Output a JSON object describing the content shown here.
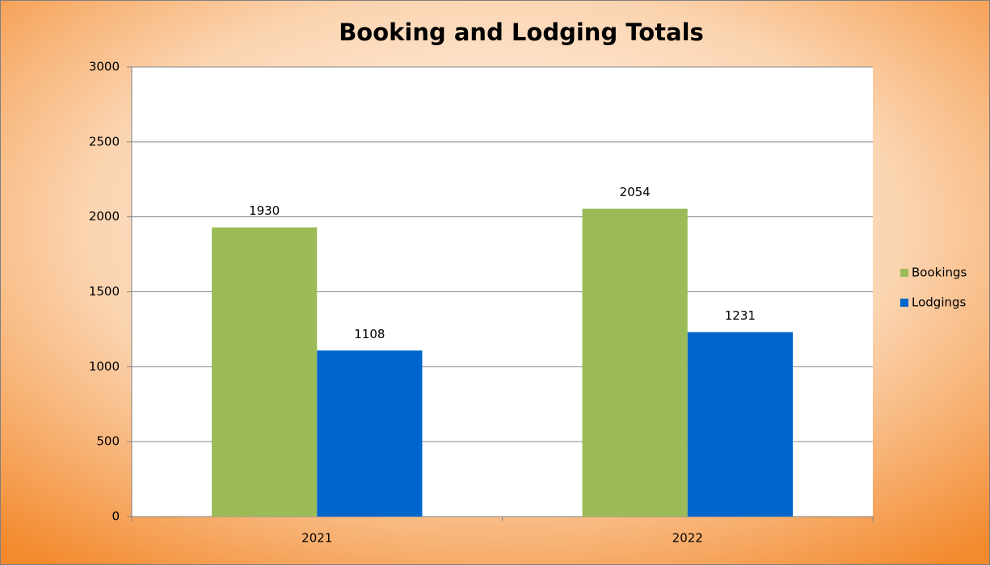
{
  "chart_data": {
    "type": "bar",
    "title": "Booking and Lodging Totals",
    "categories": [
      "2021",
      "2022"
    ],
    "series": [
      {
        "name": "Bookings",
        "color": "#9bbb59",
        "values": [
          1930,
          2054
        ]
      },
      {
        "name": "Lodgings",
        "color": "#0066cc",
        "values": [
          1108,
          1231
        ]
      }
    ],
    "ylim": [
      0,
      3000
    ],
    "yticks": [
      0,
      500,
      1000,
      1500,
      2000,
      2500,
      3000
    ],
    "grid": true,
    "data_labels": true,
    "legend": "right"
  }
}
